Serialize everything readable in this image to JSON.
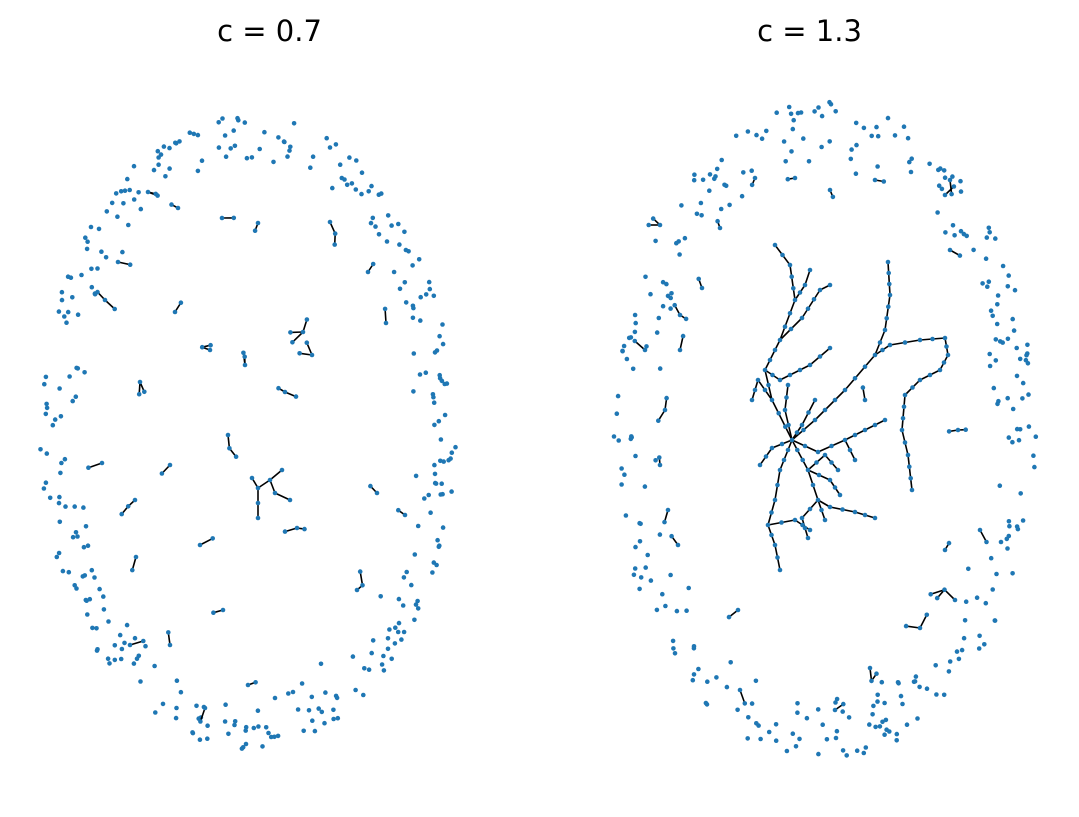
{
  "panels": [
    {
      "title": "c = 0.7"
    },
    {
      "title": "c = 1.3"
    }
  ],
  "colors": {
    "node": "#1f77b4",
    "edge": "#000000",
    "background": "#ffffff"
  }
}
